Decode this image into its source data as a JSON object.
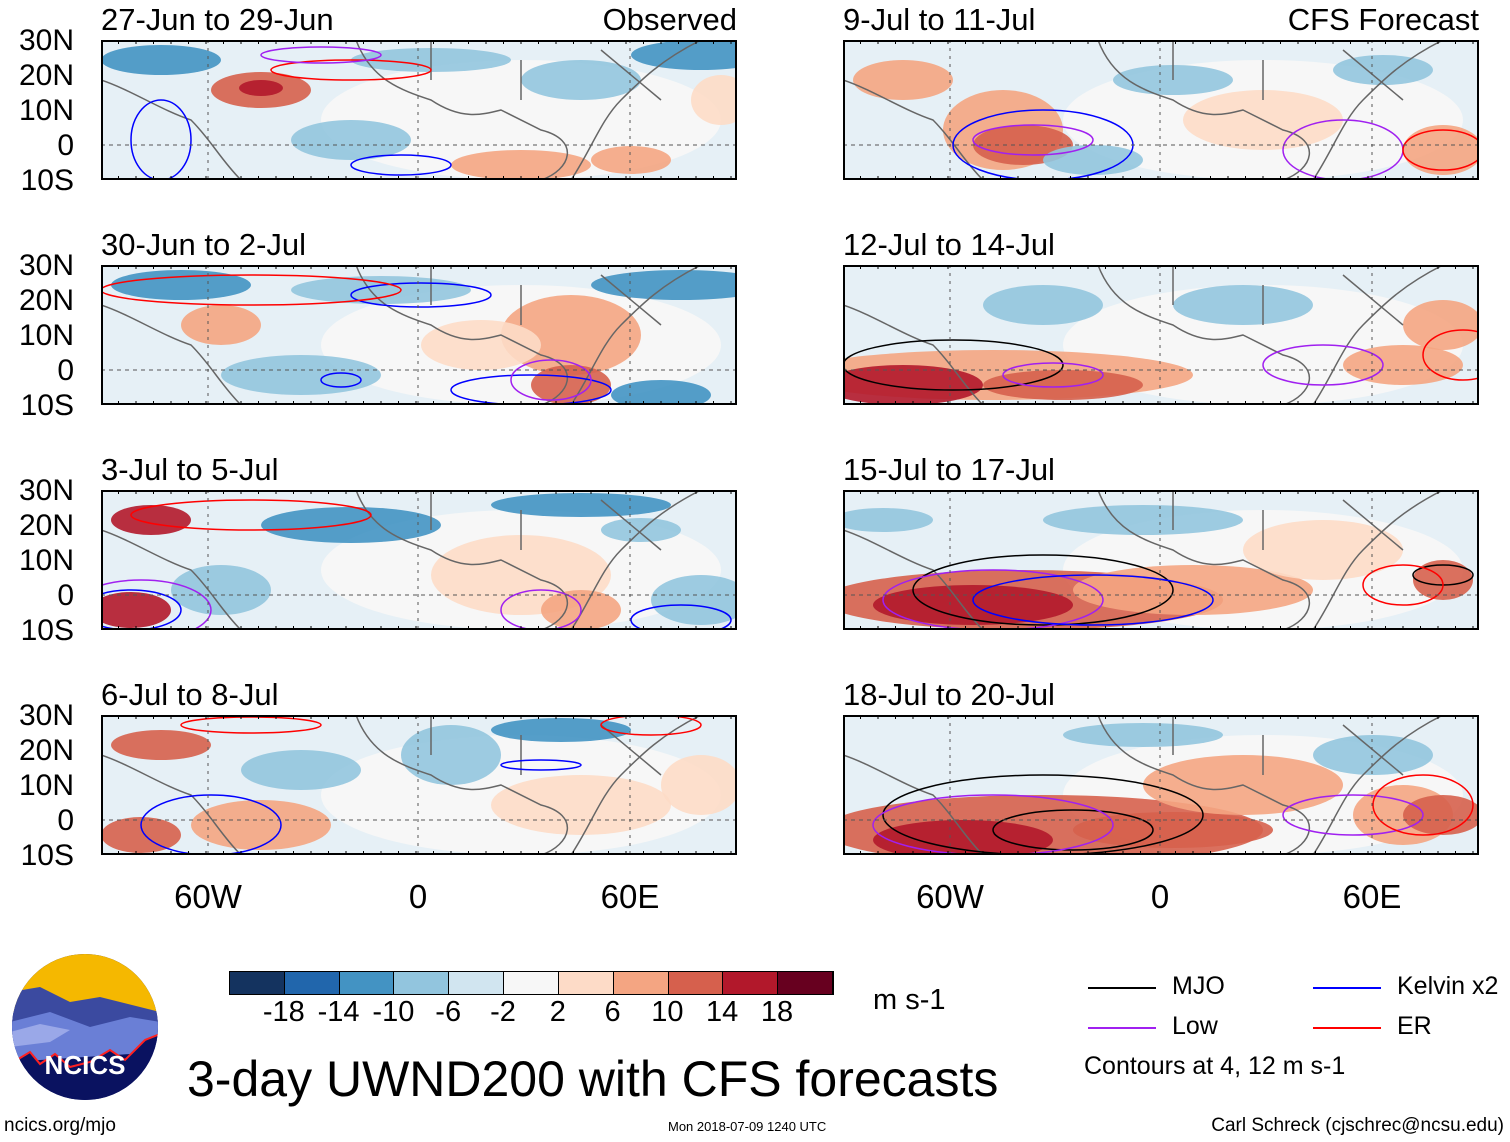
{
  "chart_data": {
    "type": "heatmap",
    "title": "3-day UWND200 with CFS forecasts",
    "units": "m s-1",
    "lon_range": [
      "90W",
      "90E"
    ],
    "lat_range": [
      "10S",
      "30N"
    ],
    "lat_ticks": [
      "30N",
      "20N",
      "10N",
      "0",
      "10S"
    ],
    "lon_ticks": [
      "60W",
      "0",
      "60E"
    ],
    "columns": {
      "left": "Observed",
      "right": "CFS Forecast"
    },
    "panels": [
      {
        "title": "27-Jun to 29-Jun",
        "type": "Observed"
      },
      {
        "title": "30-Jun to 2-Jul",
        "type": "Observed"
      },
      {
        "title": "3-Jul to 5-Jul",
        "type": "Observed"
      },
      {
        "title": "6-Jul to 8-Jul",
        "type": "Observed"
      },
      {
        "title": "9-Jul to 11-Jul",
        "type": "CFS Forecast"
      },
      {
        "title": "12-Jul to 14-Jul",
        "type": "CFS Forecast"
      },
      {
        "title": "15-Jul to 17-Jul",
        "type": "CFS Forecast"
      },
      {
        "title": "18-Jul to 20-Jul",
        "type": "CFS Forecast"
      }
    ],
    "colorbar": {
      "levels": [
        "-18",
        "-14",
        "-10",
        "-6",
        "-2",
        "2",
        "6",
        "10",
        "14",
        "18"
      ],
      "colors": [
        "#14335f",
        "#2166ac",
        "#4393c3",
        "#92c5de",
        "#d1e5f0",
        "#f7f7f7",
        "#fddbc7",
        "#f4a582",
        "#d6604d",
        "#b2182b",
        "#67001f"
      ]
    },
    "legend": [
      {
        "label": "MJO",
        "color": "#000000"
      },
      {
        "label": "Kelvin x2",
        "color": "#0000ff"
      },
      {
        "label": "Low",
        "color": "#a020f0"
      },
      {
        "label": "ER",
        "color": "#ff0000"
      }
    ],
    "contour_note": "Contours at 4, 12 m s-1"
  },
  "logo": {
    "text": "NCICS"
  },
  "footer": {
    "url": "ncics.org/mjo",
    "timestamp": "Mon 2018-07-09 1240 UTC",
    "author": "Carl Schreck (cjschrec@ncsu.edu)"
  }
}
